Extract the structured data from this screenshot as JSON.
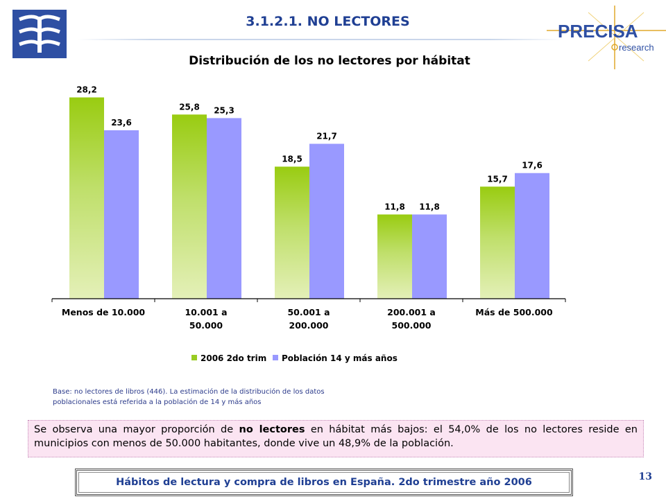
{
  "header": {
    "section_title": "3.1.2.1.  NO LECTORES",
    "brand_name": "PRECISA",
    "brand_sub": "research",
    "colors": {
      "title": "#1f3f93",
      "logo_blue": "#2e4fa3",
      "brand_gold": "#e0a92b"
    }
  },
  "chart_data": {
    "type": "bar",
    "title": "Distribución  de los no lectores por hábitat",
    "categories": [
      [
        "Menos de 10.000"
      ],
      [
        "10.001 a",
        "50.000"
      ],
      [
        "50.001 a",
        "200.000"
      ],
      [
        "200.001 a",
        "500.000"
      ],
      [
        "Más de 500.000"
      ]
    ],
    "series": [
      {
        "name": "2006 2do trim",
        "values": [
          28.2,
          25.8,
          18.5,
          11.8,
          15.7
        ],
        "labels": [
          "28,2",
          "25,8",
          "18,5",
          "11,8",
          "15,7"
        ],
        "color": "#99cc22"
      },
      {
        "name": "Población 14 y más años",
        "values": [
          23.6,
          25.3,
          21.7,
          11.8,
          17.6
        ],
        "labels": [
          "23,6",
          "25,3",
          "21,7",
          "11,8",
          "17,6"
        ],
        "color": "#9999ff"
      }
    ],
    "ylim": [
      0,
      30
    ],
    "grid": false,
    "legend_position": "bottom"
  },
  "notes": {
    "base_line1": "Base: no lectores de libros (446).  La estimación de la distribución de los datos",
    "base_line2": "poblacionales está referida a la población de 14 y más años"
  },
  "summary": {
    "text_before": "Se observa una mayor proporción de ",
    "text_bold": "no lectores",
    "text_after": " en hábitat más bajos: el 54,0% de los no lectores reside en municipios con menos de 50.000 habitantes, donde vive un 48,9% de la población."
  },
  "footer": {
    "title": "Hábitos de lectura y compra de libros en España. 2do trimestre año 2006",
    "page_number": "13"
  }
}
